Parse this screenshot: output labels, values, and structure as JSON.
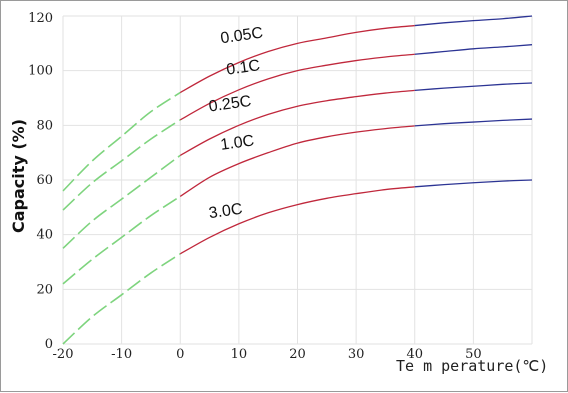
{
  "chart_data": {
    "type": "line",
    "title": "",
    "xlabel": "Te m perature(℃)",
    "ylabel": "Capacity (%)",
    "xlim": [
      -20,
      60
    ],
    "ylim": [
      0,
      120
    ],
    "x_ticks": [
      -20,
      -10,
      0,
      10,
      20,
      30,
      40,
      50
    ],
    "x_tick_labels": [
      "-20",
      "-10",
      "0",
      "10",
      "20",
      "30",
      "40",
      "50"
    ],
    "y_ticks": [
      0,
      20,
      40,
      60,
      80,
      100,
      120
    ],
    "y_tick_labels": [
      "0",
      "20",
      "40",
      "60",
      "80",
      "100",
      "120"
    ],
    "grid": true,
    "segment_colors": {
      "below_0": "#7ed47e",
      "0_to_40": "#c0283c",
      "above_40": "#2c3494"
    },
    "series": [
      {
        "name": "0.05C",
        "x": [
          -20,
          -15,
          -10,
          -5,
          0,
          5,
          10,
          15,
          20,
          25,
          30,
          35,
          40,
          45,
          50,
          55,
          60
        ],
        "values": [
          56,
          67,
          76,
          85,
          92,
          98,
          103,
          107,
          110,
          112,
          114,
          115.5,
          116.5,
          117.5,
          118.3,
          119,
          120
        ]
      },
      {
        "name": "0.1C",
        "x": [
          -20,
          -15,
          -10,
          -5,
          0,
          5,
          10,
          15,
          20,
          25,
          30,
          35,
          40,
          45,
          50,
          55,
          60
        ],
        "values": [
          49,
          59,
          67,
          75,
          82,
          88,
          93,
          97,
          100,
          102,
          103.7,
          105,
          106,
          107,
          108,
          108.7,
          109.5
        ]
      },
      {
        "name": "0.25C",
        "x": [
          -20,
          -15,
          -10,
          -5,
          0,
          5,
          10,
          15,
          20,
          25,
          30,
          35,
          40,
          45,
          50,
          55,
          60
        ],
        "values": [
          35,
          45,
          53,
          61,
          69,
          75,
          80,
          84,
          87,
          89,
          90.5,
          91.8,
          92.8,
          93.6,
          94.3,
          95,
          95.5
        ]
      },
      {
        "name": "1.0C",
        "x": [
          -20,
          -15,
          -10,
          -5,
          0,
          5,
          10,
          15,
          20,
          25,
          30,
          35,
          40,
          45,
          50,
          55,
          60
        ],
        "values": [
          22,
          31,
          39,
          47,
          54,
          61,
          66,
          70,
          73.5,
          75.8,
          77.5,
          78.8,
          79.8,
          80.6,
          81.2,
          81.8,
          82.3
        ]
      },
      {
        "name": "3.0C",
        "x": [
          -20,
          -15,
          -10,
          -5,
          0,
          5,
          10,
          15,
          20,
          25,
          30,
          35,
          40,
          45,
          50,
          55,
          60
        ],
        "values": [
          0,
          10,
          18,
          26,
          33,
          39,
          44,
          48,
          51,
          53.3,
          55,
          56.5,
          57.5,
          58.3,
          59,
          59.6,
          60
        ]
      }
    ],
    "curve_labels": [
      {
        "text": "0.05C",
        "x": 7,
        "y": 110
      },
      {
        "text": "0.1C",
        "x": 8,
        "y": 98.5
      },
      {
        "text": "0.25C",
        "x": 5,
        "y": 85
      },
      {
        "text": "1.0C",
        "x": 7,
        "y": 71
      },
      {
        "text": "3.0C",
        "x": 5,
        "y": 46
      }
    ]
  }
}
